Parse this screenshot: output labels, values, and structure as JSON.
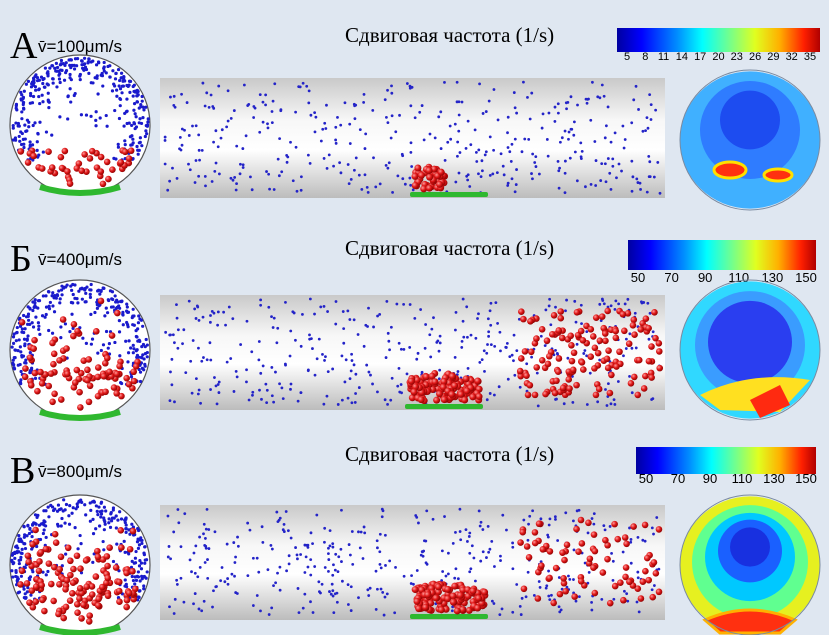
{
  "panels": [
    {
      "letter": "A",
      "velocity": "v̄=100μm/s",
      "colorbar_title": "Сдвиговая частота (1/s)",
      "colorbar_ticks": [
        5,
        8,
        11,
        14,
        17,
        20,
        23,
        26,
        29,
        32,
        35
      ]
    },
    {
      "letter": "Б",
      "velocity": "v̄=400μm/s",
      "colorbar_title": "Сдвиговая частота (1/s)",
      "colorbar_ticks": [
        50,
        70,
        90,
        110,
        130,
        150
      ]
    },
    {
      "letter": "В",
      "velocity": "v̄=800μm/s",
      "colorbar_title": "Сдвиговая частота (1/s)",
      "colorbar_ticks": [
        50,
        70,
        90,
        110,
        130,
        150
      ]
    }
  ]
}
